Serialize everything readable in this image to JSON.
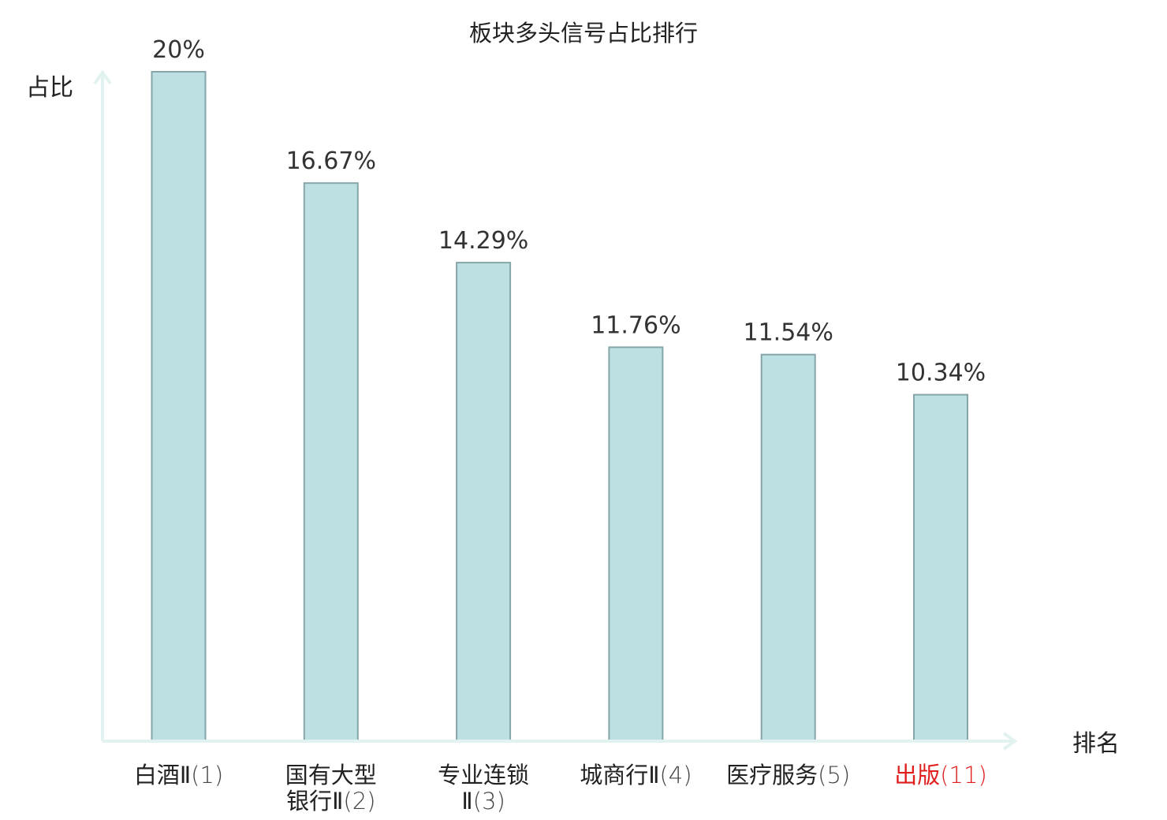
{
  "chart_data": {
    "type": "bar",
    "title": "板块多头信号占比排行",
    "ylabel": "占比",
    "xlabel": "排名",
    "ylim": [
      0,
      20
    ],
    "grid": false,
    "legend": "none",
    "categories": [
      {
        "name": "白酒Ⅱ",
        "name_line2": "",
        "rank": "(1)",
        "highlight": false
      },
      {
        "name": "国有大型",
        "name_line2": "银行Ⅱ",
        "rank": "(2)",
        "highlight": false
      },
      {
        "name": "专业连锁",
        "name_line2": "Ⅱ",
        "rank": "(3)",
        "highlight": false
      },
      {
        "name": "城商行Ⅱ",
        "name_line2": "",
        "rank": "(4)",
        "highlight": false
      },
      {
        "name": "医疗服务",
        "name_line2": "",
        "rank": "(5)",
        "highlight": false
      },
      {
        "name": "出版",
        "name_line2": "",
        "rank": "(11)",
        "highlight": true
      }
    ],
    "values": [
      20,
      16.67,
      14.29,
      11.76,
      11.54,
      10.34
    ],
    "value_labels": [
      "20%",
      "16.67%",
      "14.29%",
      "11.76%",
      "11.54%",
      "10.34%"
    ],
    "colors": {
      "bar_fill": "#bde1e3",
      "bar_stroke": "#86a5a8",
      "axis": "#e2f2f0",
      "highlight": "#e01e1e"
    }
  }
}
